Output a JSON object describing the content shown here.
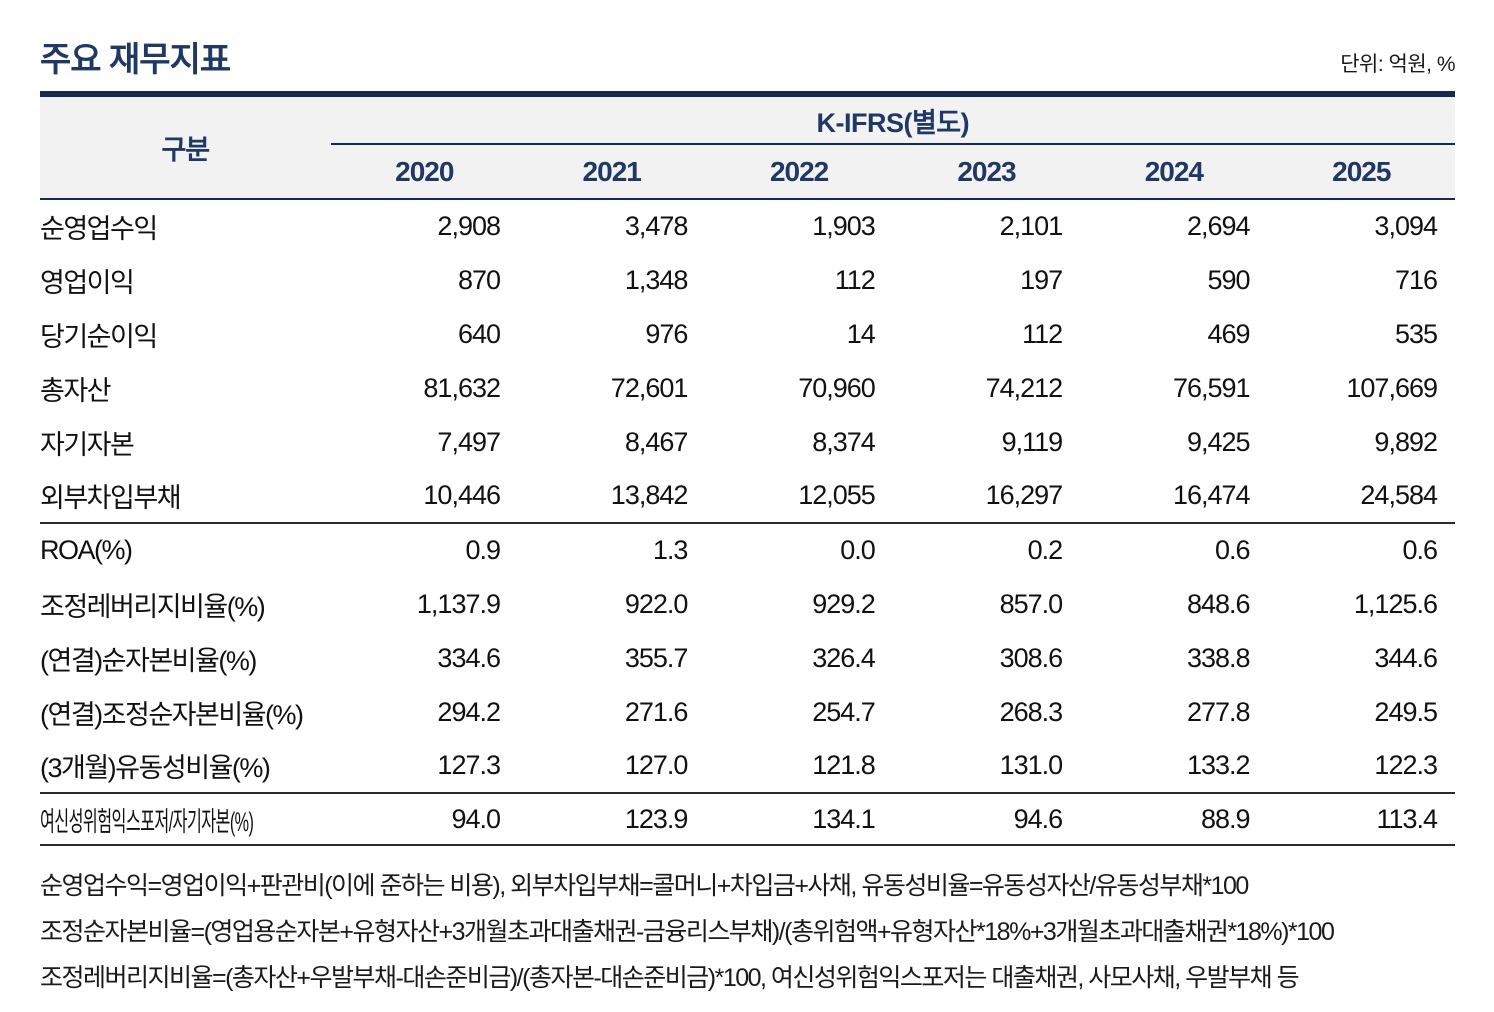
{
  "page": {
    "title": "주요 재무지표",
    "unit_label": "단위: 억원, %"
  },
  "colors": {
    "accent_navy": "#1f3864",
    "rule_navy": "#16294e",
    "header_bg": "#f2f2f2",
    "body_text": "#111111"
  },
  "table": {
    "row_header": "구분",
    "group_header": "K-IFRS(별도)",
    "years": [
      "2020",
      "2021",
      "2022",
      "2023",
      "2024",
      "2025"
    ],
    "rows": [
      {
        "label": "순영업수익",
        "values": [
          "2,908",
          "3,478",
          "1,903",
          "2,101",
          "2,694",
          "3,094"
        ]
      },
      {
        "label": "영업이익",
        "values": [
          "870",
          "1,348",
          "112",
          "197",
          "590",
          "716"
        ]
      },
      {
        "label": "당기순이익",
        "values": [
          "640",
          "976",
          "14",
          "112",
          "469",
          "535"
        ]
      },
      {
        "label": "총자산",
        "values": [
          "81,632",
          "72,601",
          "70,960",
          "74,212",
          "76,591",
          "107,669"
        ]
      },
      {
        "label": "자기자본",
        "values": [
          "7,497",
          "8,467",
          "8,374",
          "9,119",
          "9,425",
          "9,892"
        ]
      },
      {
        "label": "외부차입부채",
        "values": [
          "10,446",
          "13,842",
          "12,055",
          "16,297",
          "16,474",
          "24,584"
        ],
        "section_end": true
      },
      {
        "label": "ROA(%)",
        "values": [
          "0.9",
          "1.3",
          "0.0",
          "0.2",
          "0.6",
          "0.6"
        ]
      },
      {
        "label": "조정레버리지비율(%)",
        "values": [
          "1,137.9",
          "922.0",
          "929.2",
          "857.0",
          "848.6",
          "1,125.6"
        ]
      },
      {
        "label": "(연결)순자본비율(%)",
        "values": [
          "334.6",
          "355.7",
          "326.4",
          "308.6",
          "338.8",
          "344.6"
        ]
      },
      {
        "label": "(연결)조정순자본비율(%)",
        "values": [
          "294.2",
          "271.6",
          "254.7",
          "268.3",
          "277.8",
          "249.5"
        ]
      },
      {
        "label": "(3개월)유동성비율(%)",
        "values": [
          "127.3",
          "127.0",
          "121.8",
          "131.0",
          "133.2",
          "122.3"
        ],
        "section_end": true
      },
      {
        "label": "여신성위험익스포저/자기자본(%)",
        "values": [
          "94.0",
          "123.9",
          "134.1",
          "94.6",
          "88.9",
          "113.4"
        ],
        "condensed": true,
        "last": true
      }
    ]
  },
  "footnotes": [
    "순영업수익=영업이익+판관비(이에 준하는 비용), 외부차입부채=콜머니+차입금+사채, 유동성비율=유동성자산/유동성부채*100",
    "조정순자본비율=(영업용순자본+유형자산+3개월초과대출채권-금융리스부채)/(총위험액+유형자산*18%+3개월초과대출채권*18%)*100",
    "조정레버리지비율=(총자산+우발부채-대손준비금)/(총자본-대손준비금)*100, 여신성위험익스포저는 대출채권, 사모사채, 우발부채 등"
  ]
}
